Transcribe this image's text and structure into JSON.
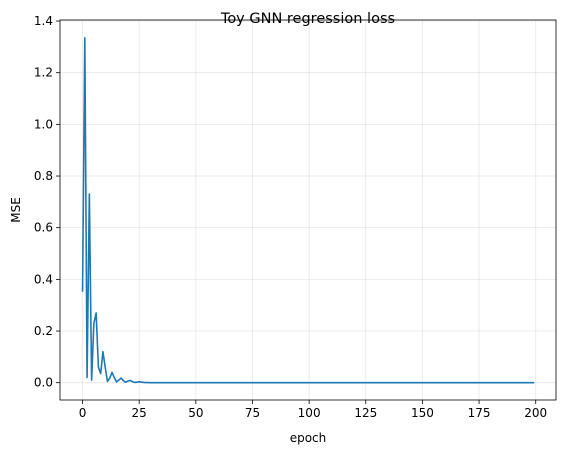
{
  "chart_data": {
    "type": "line",
    "title": "Toy GNN regression loss",
    "xlabel": "epoch",
    "ylabel": "MSE",
    "xlim": [
      -9.95,
      208.95
    ],
    "ylim": [
      -0.067,
      1.404
    ],
    "xticks": [
      0,
      25,
      50,
      75,
      100,
      125,
      150,
      175,
      200
    ],
    "yticks": [
      0.0,
      0.2,
      0.4,
      0.6,
      0.8,
      1.0,
      1.2,
      1.4
    ],
    "xtick_labels": [
      "0",
      "25",
      "50",
      "75",
      "100",
      "125",
      "150",
      "175",
      "200"
    ],
    "ytick_labels": [
      "0.0",
      "0.2",
      "0.4",
      "0.6",
      "0.8",
      "1.0",
      "1.2",
      "1.4"
    ],
    "grid": true,
    "line_color": "#1f77b4",
    "series": [
      {
        "x": [
          0,
          1,
          2,
          3,
          4,
          5,
          6,
          7,
          8,
          9,
          10,
          11,
          12,
          13,
          14,
          15,
          16,
          17,
          18,
          19,
          20,
          21,
          22,
          23,
          24,
          25,
          26,
          27,
          28,
          29,
          30,
          35,
          40,
          60,
          100,
          150,
          199
        ],
        "values": [
          0.355,
          1.335,
          0.02,
          0.73,
          0.01,
          0.23,
          0.27,
          0.06,
          0.035,
          0.12,
          0.06,
          0.005,
          0.018,
          0.04,
          0.02,
          0.003,
          0.01,
          0.018,
          0.008,
          0.002,
          0.006,
          0.009,
          0.004,
          0.001,
          0.002,
          0.004,
          0.002,
          0.001,
          0.0005,
          0.0003,
          0.0002,
          0.0001,
          0.0,
          0.0,
          0.0,
          0.0,
          0.0
        ]
      }
    ]
  }
}
